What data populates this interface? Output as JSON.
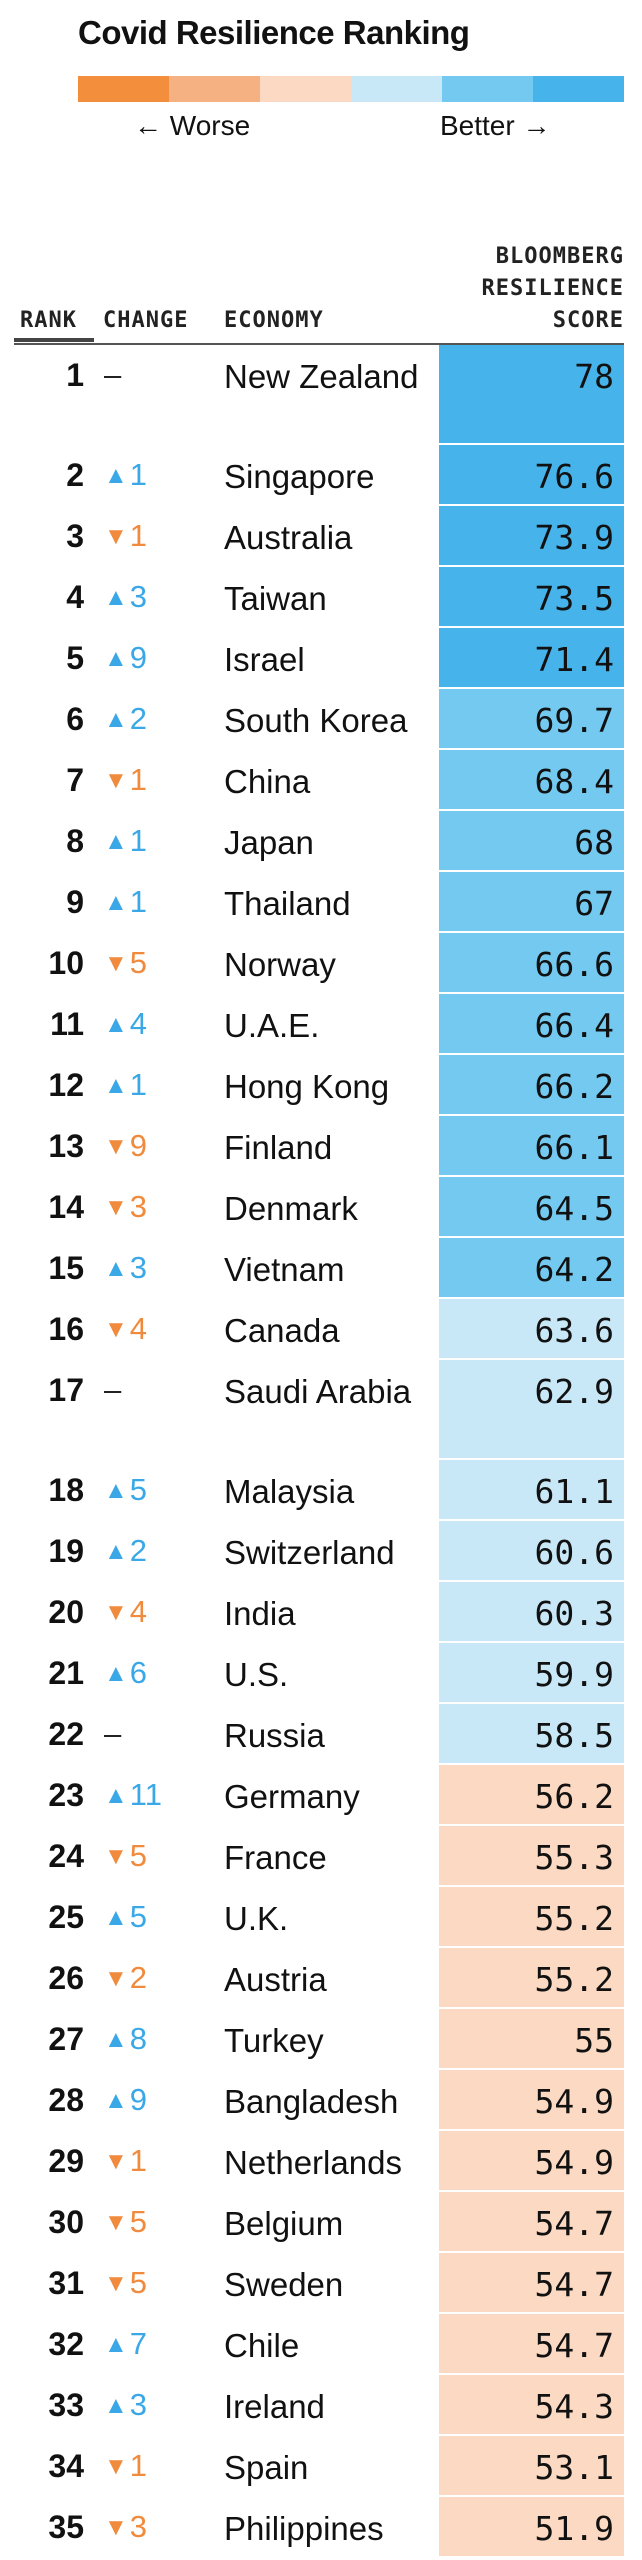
{
  "title": "Covid Resilience Ranking",
  "legend": {
    "worse_label": "Worse",
    "better_label": "Better",
    "worse_arrow": "←",
    "better_arrow": "→",
    "colors": [
      "#f28e3c",
      "#f6b182",
      "#fbd9c2",
      "#c9e8f7",
      "#73c9f0",
      "#46b4ea"
    ]
  },
  "columns": {
    "rank": "RANK",
    "change": "CHANGE",
    "economy": "ECONOMY",
    "score": [
      "BLOOMBERG",
      "RESILIENCE",
      "SCORE"
    ]
  },
  "chart_data": {
    "type": "table",
    "title": "Covid Resilience Ranking",
    "columns": [
      "RANK",
      "CHANGE",
      "ECONOMY",
      "BLOOMBERG RESILIENCE SCORE"
    ],
    "tier_colors": {
      "strongest": "#46b4ea",
      "strong": "#73c9f0",
      "moderate": "#c9e8f7",
      "weak": "#fbd9c2"
    },
    "rows": [
      {
        "rank": 1,
        "change": "–",
        "dir": "same",
        "economy": "New Zealand",
        "score": "78",
        "tier": "strongest"
      },
      {
        "rank": 2,
        "change": "1",
        "dir": "up",
        "economy": "Singapore",
        "score": "76.6",
        "tier": "strongest"
      },
      {
        "rank": 3,
        "change": "1",
        "dir": "down",
        "economy": "Australia",
        "score": "73.9",
        "tier": "strongest"
      },
      {
        "rank": 4,
        "change": "3",
        "dir": "up",
        "economy": "Taiwan",
        "score": "73.5",
        "tier": "strongest"
      },
      {
        "rank": 5,
        "change": "9",
        "dir": "up",
        "economy": "Israel",
        "score": "71.4",
        "tier": "strongest"
      },
      {
        "rank": 6,
        "change": "2",
        "dir": "up",
        "economy": "South Korea",
        "score": "69.7",
        "tier": "strong"
      },
      {
        "rank": 7,
        "change": "1",
        "dir": "down",
        "economy": "China",
        "score": "68.4",
        "tier": "strong"
      },
      {
        "rank": 8,
        "change": "1",
        "dir": "up",
        "economy": "Japan",
        "score": "68",
        "tier": "strong"
      },
      {
        "rank": 9,
        "change": "1",
        "dir": "up",
        "economy": "Thailand",
        "score": "67",
        "tier": "strong"
      },
      {
        "rank": 10,
        "change": "5",
        "dir": "down",
        "economy": "Norway",
        "score": "66.6",
        "tier": "strong"
      },
      {
        "rank": 11,
        "change": "4",
        "dir": "up",
        "economy": "U.A.E.",
        "score": "66.4",
        "tier": "strong"
      },
      {
        "rank": 12,
        "change": "1",
        "dir": "up",
        "economy": "Hong Kong",
        "score": "66.2",
        "tier": "strong"
      },
      {
        "rank": 13,
        "change": "9",
        "dir": "down",
        "economy": "Finland",
        "score": "66.1",
        "tier": "strong"
      },
      {
        "rank": 14,
        "change": "3",
        "dir": "down",
        "economy": "Denmark",
        "score": "64.5",
        "tier": "strong"
      },
      {
        "rank": 15,
        "change": "3",
        "dir": "up",
        "economy": "Vietnam",
        "score": "64.2",
        "tier": "strong"
      },
      {
        "rank": 16,
        "change": "4",
        "dir": "down",
        "economy": "Canada",
        "score": "63.6",
        "tier": "moderate"
      },
      {
        "rank": 17,
        "change": "–",
        "dir": "same",
        "economy": "Saudi Arabia",
        "score": "62.9",
        "tier": "moderate"
      },
      {
        "rank": 18,
        "change": "5",
        "dir": "up",
        "economy": "Malaysia",
        "score": "61.1",
        "tier": "moderate"
      },
      {
        "rank": 19,
        "change": "2",
        "dir": "up",
        "economy": "Switzerland",
        "score": "60.6",
        "tier": "moderate"
      },
      {
        "rank": 20,
        "change": "4",
        "dir": "down",
        "economy": "India",
        "score": "60.3",
        "tier": "moderate"
      },
      {
        "rank": 21,
        "change": "6",
        "dir": "up",
        "economy": "U.S.",
        "score": "59.9",
        "tier": "moderate"
      },
      {
        "rank": 22,
        "change": "–",
        "dir": "same",
        "economy": "Russia",
        "score": "58.5",
        "tier": "moderate"
      },
      {
        "rank": 23,
        "change": "11",
        "dir": "up",
        "economy": "Germany",
        "score": "56.2",
        "tier": "weak"
      },
      {
        "rank": 24,
        "change": "5",
        "dir": "down",
        "economy": "France",
        "score": "55.3",
        "tier": "weak"
      },
      {
        "rank": 25,
        "change": "5",
        "dir": "up",
        "economy": "U.K.",
        "score": "55.2",
        "tier": "weak"
      },
      {
        "rank": 26,
        "change": "2",
        "dir": "down",
        "economy": "Austria",
        "score": "55.2",
        "tier": "weak"
      },
      {
        "rank": 27,
        "change": "8",
        "dir": "up",
        "economy": "Turkey",
        "score": "55",
        "tier": "weak"
      },
      {
        "rank": 28,
        "change": "9",
        "dir": "up",
        "economy": "Bangladesh",
        "score": "54.9",
        "tier": "weak"
      },
      {
        "rank": 29,
        "change": "1",
        "dir": "down",
        "economy": "Netherlands",
        "score": "54.9",
        "tier": "weak"
      },
      {
        "rank": 30,
        "change": "5",
        "dir": "down",
        "economy": "Belgium",
        "score": "54.7",
        "tier": "weak"
      },
      {
        "rank": 31,
        "change": "5",
        "dir": "down",
        "economy": "Sweden",
        "score": "54.7",
        "tier": "weak"
      },
      {
        "rank": 32,
        "change": "7",
        "dir": "up",
        "economy": "Chile",
        "score": "54.7",
        "tier": "weak"
      },
      {
        "rank": 33,
        "change": "3",
        "dir": "up",
        "economy": "Ireland",
        "score": "54.3",
        "tier": "weak"
      },
      {
        "rank": 34,
        "change": "1",
        "dir": "down",
        "economy": "Spain",
        "score": "53.1",
        "tier": "weak"
      },
      {
        "rank": 35,
        "change": "3",
        "dir": "down",
        "economy": "Philippines",
        "score": "51.9",
        "tier": "weak"
      }
    ]
  }
}
